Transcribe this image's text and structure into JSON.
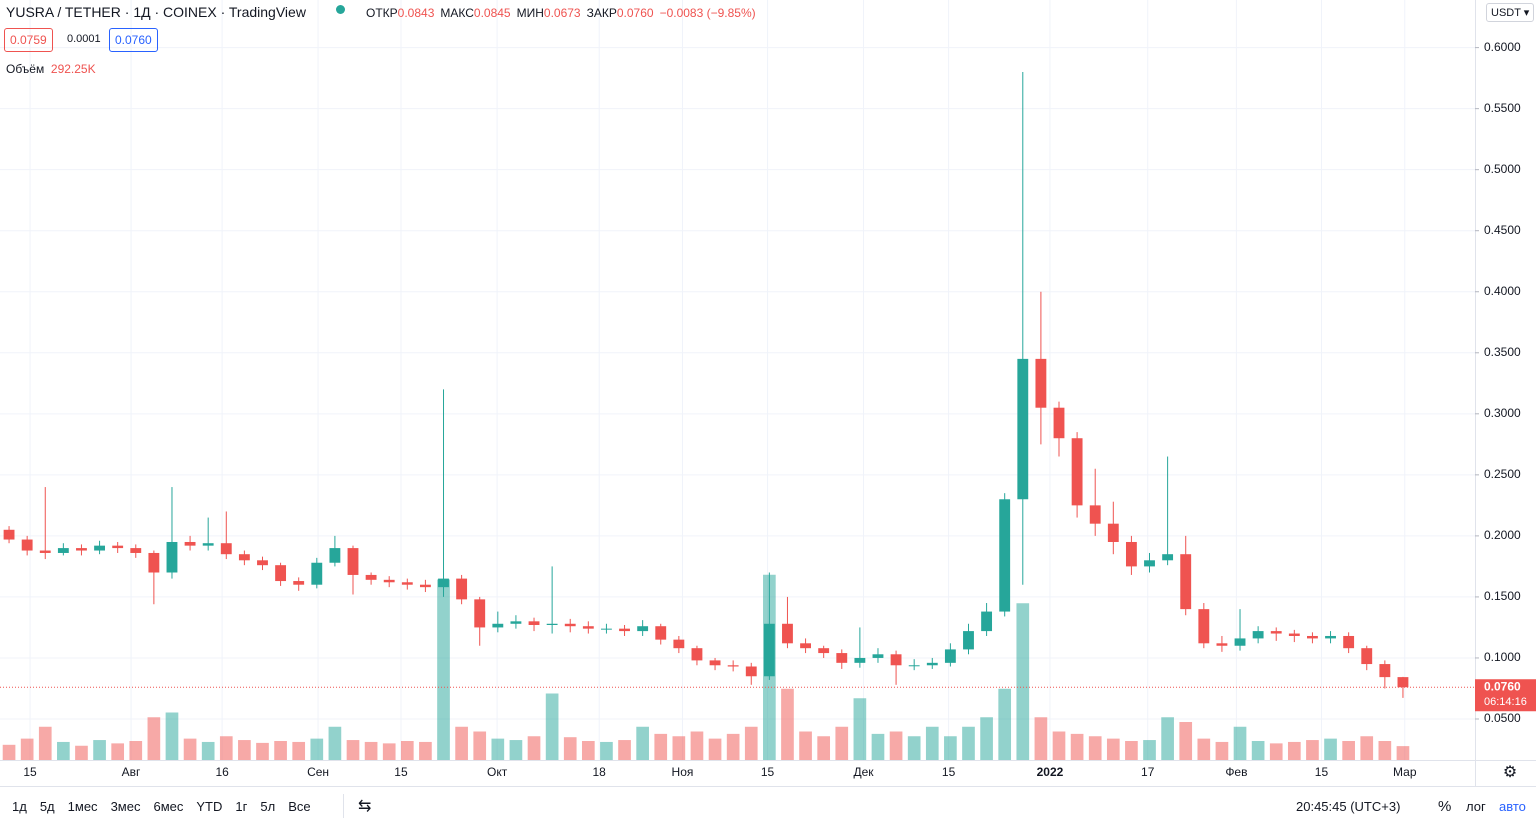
{
  "header": {
    "symbol": "YUSRA / TETHER · 1Д · COINEX · TradingView",
    "ohlc": [
      {
        "label": "ОТКР",
        "value": "0.0843"
      },
      {
        "label": "МАКС",
        "value": "0.0845"
      },
      {
        "label": "МИН",
        "value": "0.0673"
      },
      {
        "label": "ЗАКР",
        "value": "0.0760"
      }
    ],
    "change": "−0.0083 (−9.85%)",
    "bid": "0.0759",
    "spread": "0.0001",
    "ask": "0.0760",
    "volume_label": "Объём",
    "volume_value": "292.25K",
    "price_label": "0.0760",
    "countdown": "06:14:16",
    "currency": "USDT"
  },
  "toolbar": {
    "ranges": [
      "1д",
      "5д",
      "1мес",
      "3мес",
      "6мес",
      "YTD",
      "1г",
      "5л",
      "Все"
    ],
    "clock": "20:45:45 (UTC+3)",
    "percent": "%",
    "log": "лог",
    "auto": "авто"
  },
  "chart_data": {
    "type": "candlestick",
    "up_color": "#26a69a",
    "down_color": "#ef5350",
    "grid": true,
    "categories": [
      null,
      null,
      null,
      null,
      null,
      null,
      null,
      null,
      null,
      null,
      null,
      null,
      null,
      null,
      null,
      null,
      null,
      null,
      null,
      null,
      null,
      null,
      null,
      null,
      null,
      null,
      null,
      null,
      null,
      null,
      null,
      null,
      null,
      null,
      null,
      null,
      null,
      null,
      null,
      null,
      null,
      null,
      null,
      null,
      null,
      null,
      null,
      null,
      null,
      null,
      null,
      null,
      null,
      null,
      null,
      null,
      null,
      null,
      null,
      null,
      null,
      null,
      null,
      null,
      null,
      null,
      null,
      null,
      null,
      null,
      null,
      null,
      null,
      null,
      null,
      null,
      null,
      null
    ],
    "open": [
      0.205,
      0.197,
      0.188,
      0.186,
      0.19,
      0.188,
      0.192,
      0.19,
      0.186,
      0.17,
      0.195,
      0.192,
      0.194,
      0.185,
      0.18,
      0.176,
      0.163,
      0.16,
      0.178,
      0.19,
      0.168,
      0.164,
      0.162,
      0.16,
      0.158,
      0.165,
      0.148,
      0.125,
      0.128,
      0.13,
      0.127,
      0.128,
      0.126,
      0.124,
      0.124,
      0.122,
      0.126,
      0.115,
      0.108,
      0.098,
      0.094,
      0.093,
      0.085,
      0.128,
      0.112,
      0.108,
      0.104,
      0.096,
      0.1,
      0.103,
      0.094,
      0.094,
      0.096,
      0.107,
      0.122,
      0.138,
      0.23,
      0.345,
      0.305,
      0.28,
      0.225,
      0.21,
      0.195,
      0.175,
      0.18,
      0.185,
      0.14,
      0.112,
      0.11,
      0.116,
      0.122,
      0.12,
      0.118,
      0.116,
      0.118,
      0.108,
      0.095,
      0.0843
    ],
    "high": [
      0.208,
      0.2,
      0.24,
      0.194,
      0.193,
      0.196,
      0.195,
      0.193,
      0.188,
      0.24,
      0.2,
      0.215,
      0.22,
      0.188,
      0.183,
      0.178,
      0.166,
      0.182,
      0.2,
      0.192,
      0.17,
      0.167,
      0.165,
      0.164,
      0.32,
      0.168,
      0.15,
      0.138,
      0.135,
      0.133,
      0.175,
      0.132,
      0.13,
      0.128,
      0.127,
      0.131,
      0.128,
      0.118,
      0.11,
      0.1,
      0.098,
      0.096,
      0.17,
      0.15,
      0.116,
      0.11,
      0.107,
      0.125,
      0.108,
      0.106,
      0.099,
      0.1,
      0.112,
      0.128,
      0.145,
      0.235,
      0.58,
      0.4,
      0.31,
      0.285,
      0.255,
      0.228,
      0.2,
      0.186,
      0.265,
      0.2,
      0.145,
      0.118,
      0.14,
      0.126,
      0.125,
      0.123,
      0.121,
      0.122,
      0.121,
      0.11,
      0.098,
      0.0845
    ],
    "low": [
      0.194,
      0.184,
      0.181,
      0.184,
      0.184,
      0.185,
      0.186,
      0.182,
      0.144,
      0.165,
      0.188,
      0.188,
      0.181,
      0.176,
      0.172,
      0.159,
      0.155,
      0.157,
      0.175,
      0.152,
      0.16,
      0.158,
      0.156,
      0.154,
      0.15,
      0.144,
      0.11,
      0.121,
      0.124,
      0.122,
      0.12,
      0.121,
      0.12,
      0.12,
      0.118,
      0.118,
      0.111,
      0.104,
      0.094,
      0.09,
      0.089,
      0.078,
      0.082,
      0.108,
      0.104,
      0.1,
      0.091,
      0.092,
      0.096,
      0.078,
      0.09,
      0.091,
      0.093,
      0.103,
      0.118,
      0.134,
      0.16,
      0.275,
      0.265,
      0.215,
      0.2,
      0.185,
      0.168,
      0.17,
      0.176,
      0.135,
      0.108,
      0.105,
      0.106,
      0.112,
      0.114,
      0.113,
      0.112,
      0.112,
      0.104,
      0.09,
      0.075,
      0.0673
    ],
    "close": [
      0.197,
      0.188,
      0.186,
      0.19,
      0.188,
      0.192,
      0.19,
      0.186,
      0.17,
      0.195,
      0.192,
      0.194,
      0.185,
      0.18,
      0.176,
      0.163,
      0.16,
      0.178,
      0.19,
      0.168,
      0.164,
      0.162,
      0.16,
      0.158,
      0.165,
      0.148,
      0.125,
      0.128,
      0.13,
      0.127,
      0.128,
      0.126,
      0.124,
      0.124,
      0.122,
      0.126,
      0.115,
      0.108,
      0.098,
      0.094,
      0.093,
      0.085,
      0.128,
      0.112,
      0.108,
      0.104,
      0.096,
      0.1,
      0.103,
      0.094,
      0.094,
      0.096,
      0.107,
      0.122,
      0.138,
      0.23,
      0.345,
      0.305,
      0.28,
      0.225,
      0.21,
      0.195,
      0.175,
      0.18,
      0.185,
      0.14,
      0.112,
      0.11,
      0.116,
      0.122,
      0.12,
      0.118,
      0.116,
      0.118,
      0.108,
      0.095,
      0.0843,
      0.076
    ],
    "volume": [
      320000,
      450000,
      700000,
      380000,
      300000,
      420000,
      350000,
      400000,
      900000,
      1000000,
      450000,
      380000,
      500000,
      420000,
      360000,
      400000,
      380000,
      450000,
      700000,
      420000,
      380000,
      350000,
      400000,
      380000,
      3800000,
      700000,
      600000,
      450000,
      420000,
      500000,
      1400000,
      480000,
      400000,
      380000,
      420000,
      700000,
      550000,
      500000,
      600000,
      450000,
      550000,
      700000,
      3900000,
      1500000,
      600000,
      500000,
      700000,
      1300000,
      550000,
      600000,
      500000,
      700000,
      500000,
      700000,
      900000,
      1500000,
      3300000,
      900000,
      600000,
      550000,
      500000,
      450000,
      400000,
      420000,
      900000,
      800000,
      450000,
      380000,
      700000,
      400000,
      350000,
      380000,
      420000,
      450000,
      400000,
      500000,
      400000,
      292250
    ],
    "vlim": [
      0,
      16000000
    ],
    "ylim": [
      0.0164,
      0.639
    ],
    "yticks": [
      {
        "value": 0.05,
        "label": "0.0500"
      },
      {
        "value": 0.1,
        "label": "0.1000"
      },
      {
        "value": 0.15,
        "label": "0.1500"
      },
      {
        "value": 0.2,
        "label": "0.2000"
      },
      {
        "value": 0.25,
        "label": "0.2500"
      },
      {
        "value": 0.3,
        "label": "0.3000"
      },
      {
        "value": 0.35,
        "label": "0.3500"
      },
      {
        "value": 0.4,
        "label": "0.4000"
      },
      {
        "value": 0.45,
        "label": "0.4500"
      },
      {
        "value": 0.5,
        "label": "0.5000"
      },
      {
        "value": 0.55,
        "label": "0.5500"
      },
      {
        "value": 0.6,
        "label": "0.6000"
      }
    ],
    "xticks": [
      {
        "value": 1.16,
        "label": "15"
      },
      {
        "value": 6.74,
        "label": "Авг"
      },
      {
        "value": 11.77,
        "label": "16"
      },
      {
        "value": 17.07,
        "label": "Сен"
      },
      {
        "value": 21.65,
        "label": "15"
      },
      {
        "value": 26.96,
        "label": "Окт"
      },
      {
        "value": 32.6,
        "label": "18"
      },
      {
        "value": 37.2,
        "label": "Ноя"
      },
      {
        "value": 41.9,
        "label": "15"
      },
      {
        "value": 47.2,
        "label": "Дек"
      },
      {
        "value": 51.9,
        "label": "15"
      },
      {
        "value": 57.5,
        "label": "2022"
      },
      {
        "value": 62.9,
        "label": "17"
      },
      {
        "value": 67.8,
        "label": "Фев"
      },
      {
        "value": 72.5,
        "label": "15"
      },
      {
        "value": 77.1,
        "label": "Мар"
      }
    ]
  }
}
